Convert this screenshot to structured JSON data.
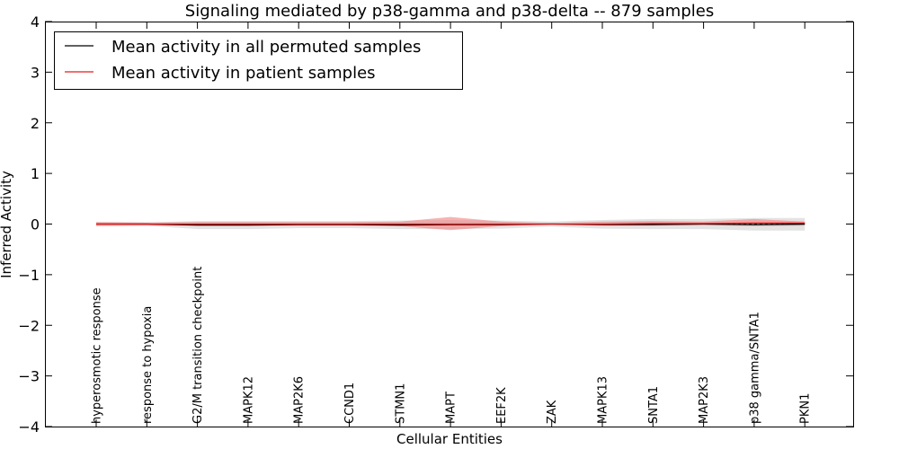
{
  "chart_data": {
    "type": "line",
    "title": "Signaling mediated by p38-gamma and p38-delta -- 879 samples",
    "xlabel": "Cellular Entities",
    "ylabel": "Inferred Activity",
    "ylim": [
      -4,
      4
    ],
    "yticks": [
      -4,
      -3,
      -2,
      -1,
      0,
      1,
      2,
      3,
      4
    ],
    "ytick_labels": [
      "−4",
      "−3",
      "−2",
      "−1",
      "0",
      "1",
      "2",
      "3",
      "4"
    ],
    "legend_position": "top-left",
    "categories": [
      "hyperosmotic response",
      "response to hypoxia",
      "G2/M transition checkpoint",
      "MAPK12",
      "MAP2K6",
      "CCND1",
      "STMN1",
      "MAPT",
      "EEF2K",
      "ZAK",
      "MAPK13",
      "SNTA1",
      "MAP2K3",
      "p38 gamma/SNTA1",
      "PKN1"
    ],
    "series": [
      {
        "name": "Mean activity in all permuted samples",
        "color": "#000000",
        "values": [
          0,
          0,
          -0.02,
          -0.02,
          -0.01,
          -0.01,
          -0.02,
          -0.01,
          -0.01,
          0,
          -0.01,
          -0.01,
          0,
          -0.01,
          0
        ],
        "band_lower": [
          -0.03,
          -0.03,
          -0.1,
          -0.1,
          -0.08,
          -0.08,
          -0.1,
          -0.1,
          -0.09,
          -0.05,
          -0.09,
          -0.1,
          -0.1,
          -0.13,
          -0.13
        ],
        "band_upper": [
          0.03,
          0.03,
          0.06,
          0.06,
          0.06,
          0.06,
          0.07,
          0.08,
          0.07,
          0.05,
          0.08,
          0.1,
          0.1,
          0.12,
          0.12
        ],
        "band_color": "#d9d9d9"
      },
      {
        "name": "Mean activity in patient samples",
        "color": "#e31a1c",
        "values": [
          0,
          0,
          0,
          0,
          0,
          0,
          0,
          0,
          0,
          0,
          0,
          0.01,
          0.01,
          0.02,
          0.02
        ],
        "band_lower": [
          -0.04,
          -0.03,
          -0.03,
          -0.03,
          -0.03,
          -0.03,
          -0.04,
          -0.12,
          -0.04,
          -0.01,
          -0.03,
          -0.03,
          -0.02,
          -0.04,
          -0.03
        ],
        "band_upper": [
          0.04,
          0.03,
          0.04,
          0.04,
          0.04,
          0.04,
          0.05,
          0.14,
          0.05,
          0.02,
          0.05,
          0.06,
          0.05,
          0.1,
          0.05
        ],
        "band_color": "#f08080"
      }
    ]
  }
}
